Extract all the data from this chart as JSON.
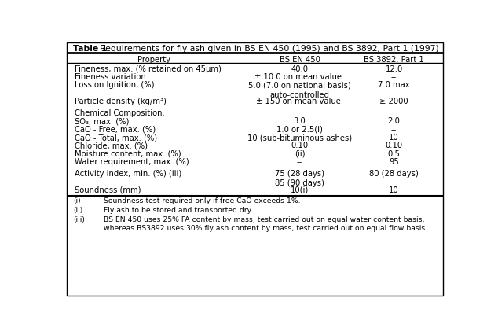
{
  "title_bold": "Table 1",
  "title_rest": "Requirements for fly ash given in BS EN 450 (1995) and BS 3892, Part 1 (1997)",
  "col_headers": [
    "Property",
    "BS EN 450",
    "BS 3892, Part 1"
  ],
  "rows": [
    [
      "Fineness, max. (% retained on 45μm)",
      "40.0",
      "12.0"
    ],
    [
      "Fineness variation",
      "± 10.0 on mean value.",
      "--"
    ],
    [
      "Loss on Ignition, (%)",
      "5.0 (7.0 on national basis)\nauto-controlled",
      "7.0 max"
    ],
    [
      "Particle density (kg/m³)",
      "± 150 on mean value.",
      "≥ 2000"
    ],
    [
      "Chemical Composition:",
      "",
      ""
    ],
    [
      "SO₃, max. (%)",
      "3.0",
      "2.0"
    ],
    [
      "CaO - Free, max. (%)",
      "1.0 or 2.5(i)",
      "--"
    ],
    [
      "CaO - Total, max. (%)",
      "10 (sub-bituminous ashes)",
      "10"
    ],
    [
      "Chloride, max. (%)",
      "0.10",
      "0.10"
    ],
    [
      "Moisture content, max. (%)",
      "(ii)",
      "0.5"
    ],
    [
      "Water requirement, max. (%)",
      "--",
      "95"
    ],
    [
      "Activity index, min. (%) (iii)",
      "75 (28 days)\n85 (90 days)",
      "80 (28 days)"
    ],
    [
      "Soundness (mm)",
      "10(i)",
      "10"
    ]
  ],
  "row_heights": [
    1,
    1,
    2,
    1.4,
    1,
    1,
    1,
    1,
    1,
    1,
    1.4,
    2,
    1.4
  ],
  "footnotes": [
    [
      "(i)",
      "Soundness test required only if free CaO exceeds 1%."
    ],
    [
      "(ii)",
      "Fly ash to be stored and transported dry"
    ],
    [
      "(iii)",
      "BS EN 450 uses 25% FA content by mass, test carried out on equal water content basis,\nwhereas BS3892 uses 30% fly ash content by mass, test carried out on equal flow basis."
    ]
  ],
  "bg_color": "#ffffff",
  "border_color": "#000000",
  "font_size": 7.2,
  "title_font_size": 7.8,
  "font_family": "DejaVu Sans"
}
